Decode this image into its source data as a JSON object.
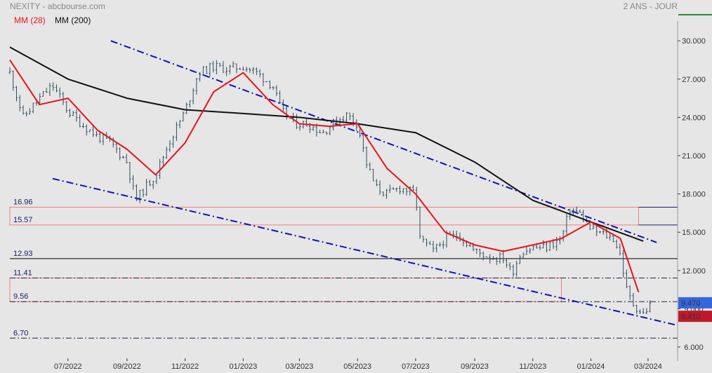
{
  "header": {
    "title": "NEXITY - abcbourse.com",
    "period": "2 ANS - JOUR",
    "legend_ma28": "MM (28)",
    "legend_ma200": "MM (200)"
  },
  "colors": {
    "background": "#e6e6e6",
    "price": "#2f4f5f",
    "ma28": "#e8141a",
    "ma200": "#111111",
    "trendline": "#1010c0",
    "zone_border": "#f08080",
    "tag_last": "#3366dd",
    "tag_ma": "#c0182a",
    "accent_bar": "#2e8b2e"
  },
  "chart_data": {
    "type": "line",
    "title": "NEXITY - abcbourse.com",
    "period": "2 ANS - JOUR",
    "yaxis": {
      "min": 6.0,
      "max": 31.0,
      "ticks": [
        "30.000",
        "27.000",
        "24.000",
        "21.000",
        "18.000",
        "15.000",
        "12.000",
        "9.000",
        "6.000"
      ],
      "side": "right"
    },
    "xaxis": {
      "start": "2022-05",
      "end": "2024-03",
      "ticks": [
        "07/2022",
        "09/2022",
        "11/2022",
        "01/2023",
        "03/2023",
        "05/2023",
        "07/2023",
        "09/2023",
        "11/2023",
        "01/2024",
        "03/2024"
      ]
    },
    "grid": false,
    "series": [
      {
        "name": "NEXITY",
        "style": "ohlc",
        "x": [
          "2022-05-01",
          "2022-05-15",
          "2022-06-01",
          "2022-06-15",
          "2022-07-01",
          "2022-07-15",
          "2022-08-01",
          "2022-08-15",
          "2022-09-01",
          "2022-09-10",
          "2022-09-20",
          "2022-10-01",
          "2022-10-15",
          "2022-11-01",
          "2022-11-15",
          "2022-12-01",
          "2022-12-15",
          "2023-01-01",
          "2023-01-15",
          "2023-02-01",
          "2023-02-10",
          "2023-02-25",
          "2023-03-10",
          "2023-03-25",
          "2023-04-10",
          "2023-04-20",
          "2023-05-01",
          "2023-05-10",
          "2023-05-20",
          "2023-06-01",
          "2023-06-15",
          "2023-07-01",
          "2023-07-05",
          "2023-07-20",
          "2023-08-01",
          "2023-08-15",
          "2023-09-01",
          "2023-09-20",
          "2023-10-01",
          "2023-10-10",
          "2023-10-20",
          "2023-11-01",
          "2023-11-15",
          "2023-12-01",
          "2023-12-10",
          "2023-12-20",
          "2024-01-01",
          "2024-01-15",
          "2024-01-25",
          "2024-02-01",
          "2024-02-08",
          "2024-02-15",
          "2024-02-25",
          "2024-03-05"
        ],
        "values": [
          27.5,
          24.0,
          25.5,
          26.5,
          24.5,
          23.5,
          22.5,
          22.0,
          20.5,
          17.5,
          18.5,
          19.5,
          22.0,
          24.5,
          27.5,
          28.0,
          27.8,
          28.0,
          27.5,
          26.5,
          24.5,
          23.5,
          23.5,
          22.8,
          23.8,
          24.2,
          23.5,
          20.5,
          18.5,
          18.0,
          18.5,
          18.0,
          14.5,
          13.5,
          14.5,
          14.8,
          13.5,
          13.0,
          13.0,
          11.8,
          13.5,
          13.8,
          13.8,
          14.5,
          16.8,
          16.5,
          15.2,
          14.8,
          14.5,
          13.2,
          10.3,
          9.3,
          8.6,
          9.47
        ]
      },
      {
        "name": "MM (28)",
        "x": [
          "2022-05-01",
          "2022-06-01",
          "2022-07-01",
          "2022-08-01",
          "2022-09-01",
          "2022-10-01",
          "2022-11-01",
          "2022-12-01",
          "2023-01-01",
          "2023-02-01",
          "2023-03-01",
          "2023-04-01",
          "2023-05-01",
          "2023-06-01",
          "2023-07-01",
          "2023-08-01",
          "2023-09-01",
          "2023-10-01",
          "2023-11-01",
          "2023-12-01",
          "2024-01-01",
          "2024-02-01",
          "2024-02-20"
        ],
        "values": [
          28.5,
          25.0,
          25.5,
          23.0,
          21.5,
          19.5,
          22.0,
          26.0,
          27.5,
          25.0,
          23.5,
          23.3,
          23.5,
          20.0,
          18.0,
          15.0,
          14.0,
          13.5,
          14.0,
          14.5,
          15.8,
          14.5,
          10.3
        ]
      },
      {
        "name": "MM (200)",
        "x": [
          "2022-05-01",
          "2022-07-01",
          "2022-09-01",
          "2022-11-01",
          "2023-01-01",
          "2023-03-01",
          "2023-05-01",
          "2023-07-01",
          "2023-09-01",
          "2023-11-01",
          "2024-01-01",
          "2024-02-25"
        ],
        "values": [
          29.5,
          27.0,
          25.5,
          24.6,
          24.3,
          24.0,
          23.5,
          22.8,
          20.5,
          17.5,
          15.8,
          14.3
        ]
      }
    ],
    "levels": [
      {
        "label": "16.96",
        "value": 16.96,
        "style": "solid"
      },
      {
        "label": "15.57",
        "value": 15.57,
        "style": "solid"
      },
      {
        "label": "12.93",
        "value": 12.93,
        "style": "solid"
      },
      {
        "label": "11.41",
        "value": 11.41,
        "style": "dashdot"
      },
      {
        "label": "9.56",
        "value": 9.56,
        "style": "dashdot"
      },
      {
        "label": "6.70",
        "value": 6.7,
        "style": "dashdot"
      }
    ],
    "zones": [
      {
        "from": 15.57,
        "to": 16.96,
        "x_start": "2022-05-01",
        "x_end": "2024-02-20"
      },
      {
        "from": 9.56,
        "to": 11.41,
        "x_start": "2022-05-01",
        "x_end": "2023-12-01"
      }
    ],
    "trendlines": [
      {
        "points": [
          [
            "2022-08-15",
            30.0
          ],
          [
            "2024-03-10",
            14.2
          ]
        ]
      },
      {
        "points": [
          [
            "2022-06-15",
            19.2
          ],
          [
            "2024-04-01",
            7.7
          ]
        ]
      }
    ],
    "last_values": [
      {
        "label": "9.470",
        "value": 9.47,
        "kind": "price"
      },
      {
        "label": "8.410",
        "value": 8.41,
        "kind": "ma"
      }
    ]
  }
}
